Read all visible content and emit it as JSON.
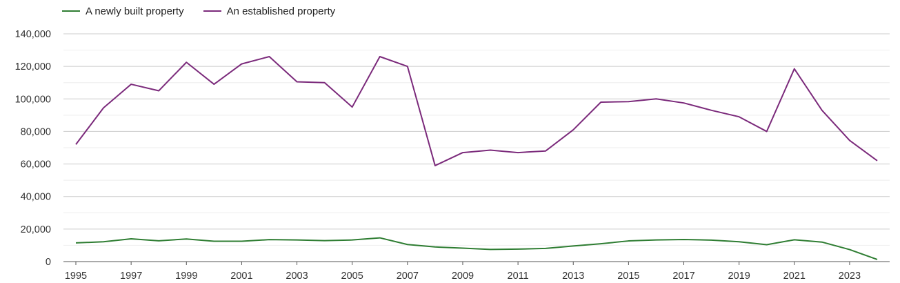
{
  "chart_data": {
    "type": "line",
    "title": "",
    "xlabel": "",
    "ylabel": "",
    "x": [
      1995,
      1996,
      1997,
      1998,
      1999,
      2000,
      2001,
      2002,
      2003,
      2004,
      2005,
      2006,
      2007,
      2008,
      2009,
      2010,
      2011,
      2012,
      2013,
      2014,
      2015,
      2016,
      2017,
      2018,
      2019,
      2020,
      2021,
      2022,
      2023,
      2024
    ],
    "x_tick_labels": [
      "1995",
      "1997",
      "1999",
      "2001",
      "2003",
      "2005",
      "2007",
      "2009",
      "2011",
      "2013",
      "2015",
      "2017",
      "2019",
      "2021",
      "2023"
    ],
    "y_tick_labels": [
      "0",
      "20,000",
      "40,000",
      "60,000",
      "80,000",
      "100,000",
      "120,000",
      "140,000"
    ],
    "xlim": [
      1995,
      2024
    ],
    "ylim": [
      0,
      140000
    ],
    "grid": true,
    "legend_position": "top-left",
    "series": [
      {
        "name": "A newly built property",
        "color": "#2e7d32",
        "values": [
          11500,
          12200,
          14000,
          12800,
          13900,
          12500,
          12500,
          13500,
          13300,
          12900,
          13300,
          14600,
          10500,
          9000,
          8300,
          7500,
          7700,
          8100,
          9600,
          11000,
          12700,
          13300,
          13600,
          13200,
          12200,
          10400,
          13400,
          12000,
          7400,
          1300
        ]
      },
      {
        "name": "An established property",
        "color": "#7b2a7b",
        "values": [
          72000,
          94500,
          109000,
          105000,
          122500,
          109000,
          121500,
          126000,
          110500,
          110000,
          95000,
          126000,
          120000,
          59000,
          67000,
          68500,
          67000,
          68000,
          81000,
          98000,
          98300,
          100000,
          97500,
          93000,
          89000,
          80000,
          118500,
          93000,
          74500,
          62000
        ]
      }
    ]
  }
}
